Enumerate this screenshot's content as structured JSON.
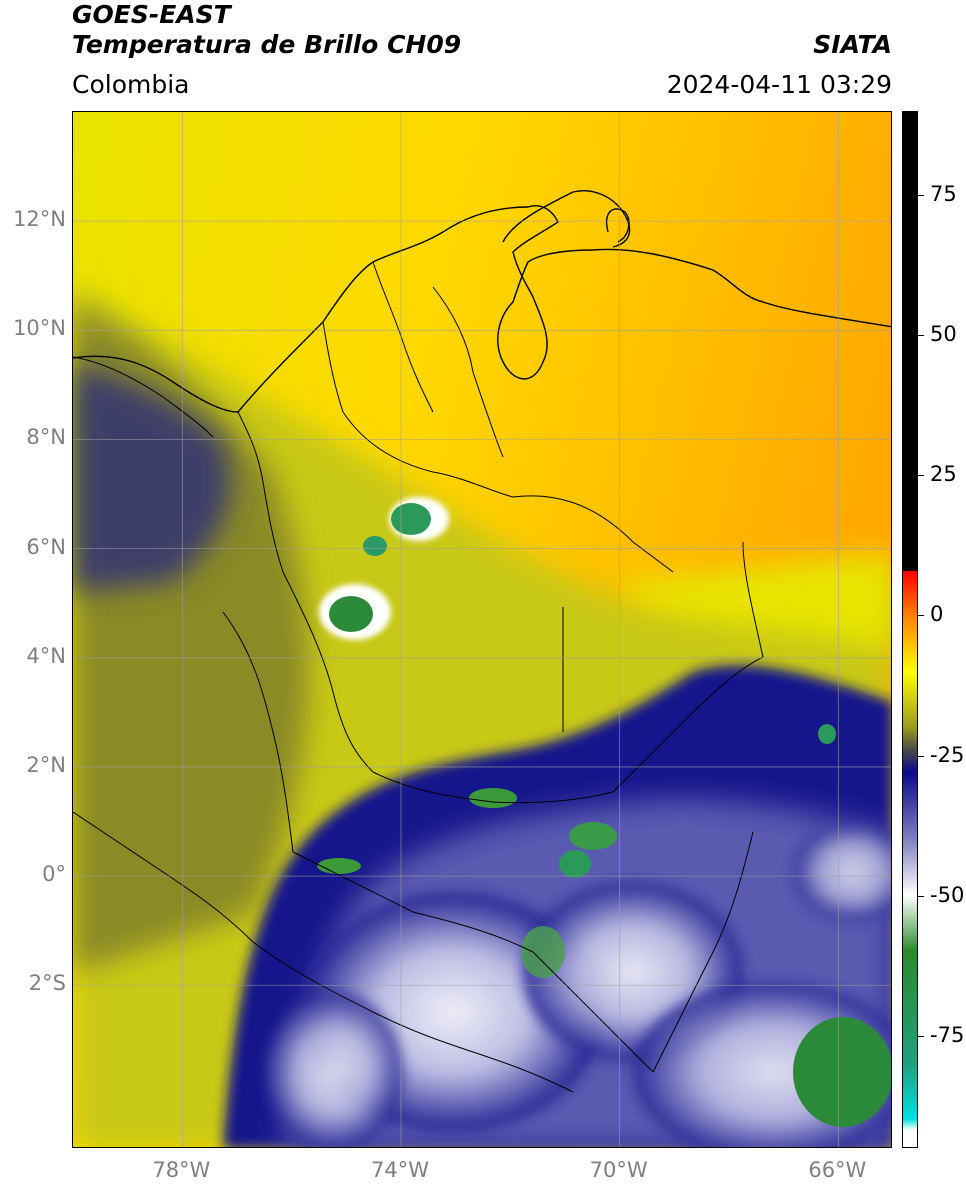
{
  "header": {
    "satellite": "GOES-EAST",
    "product": "Temperatura de Brillo CH09",
    "region": "Colombia",
    "organization": "SIATA",
    "timestamp": "2024-04-11 03:29"
  },
  "map": {
    "lon_range": [
      -80,
      -65
    ],
    "lat_range": [
      -5,
      14
    ],
    "lat_ticks": [
      {
        "value": 12,
        "label": "12°N"
      },
      {
        "value": 10,
        "label": "10°N"
      },
      {
        "value": 8,
        "label": "8°N"
      },
      {
        "value": 6,
        "label": "6°N"
      },
      {
        "value": 4,
        "label": "4°N"
      },
      {
        "value": 2,
        "label": "2°N"
      },
      {
        "value": 0,
        "label": "0°"
      },
      {
        "value": -2,
        "label": "2°S"
      }
    ],
    "lon_ticks": [
      {
        "value": -78,
        "label": "78°W"
      },
      {
        "value": -74,
        "label": "74°W"
      },
      {
        "value": -70,
        "label": "70°W"
      },
      {
        "value": -66,
        "label": "66°W"
      }
    ],
    "gridlines": true
  },
  "colorbar": {
    "range": [
      -95,
      90
    ],
    "ticks": [
      {
        "value": 75,
        "label": "75"
      },
      {
        "value": 50,
        "label": "50"
      },
      {
        "value": 25,
        "label": "25"
      },
      {
        "value": 0,
        "label": "0"
      },
      {
        "value": -25,
        "label": "-25"
      },
      {
        "value": -50,
        "label": "-50"
      },
      {
        "value": -75,
        "label": "-75"
      }
    ],
    "stops": [
      {
        "value": 90,
        "color": "#000000"
      },
      {
        "value": 8,
        "color": "#000000"
      },
      {
        "value": 7.9,
        "color": "#ff0000"
      },
      {
        "value": 0,
        "color": "#ff8000"
      },
      {
        "value": -10,
        "color": "#ffff00"
      },
      {
        "value": -20,
        "color": "#9a9a1e"
      },
      {
        "value": -24,
        "color": "#4a4a4a"
      },
      {
        "value": -28,
        "color": "#0a0a8c"
      },
      {
        "value": -40,
        "color": "#8080c0"
      },
      {
        "value": -50,
        "color": "#ffffff"
      },
      {
        "value": -60,
        "color": "#2a8a2a"
      },
      {
        "value": -80,
        "color": "#20a080"
      },
      {
        "value": -90,
        "color": "#00e0e0"
      },
      {
        "value": -92,
        "color": "#ffffff"
      },
      {
        "value": -95,
        "color": "#ffffff"
      }
    ]
  },
  "colors": {
    "warm_orange": "#ffb000",
    "yellow": "#ffff00",
    "olive": "#9a9a1e",
    "dark_blue": "#0a0a8c",
    "cloud_white": "#ffffff",
    "cold_green": "#2a8a2a",
    "grid": "#a0a0a0",
    "tick_label": "#808080"
  }
}
